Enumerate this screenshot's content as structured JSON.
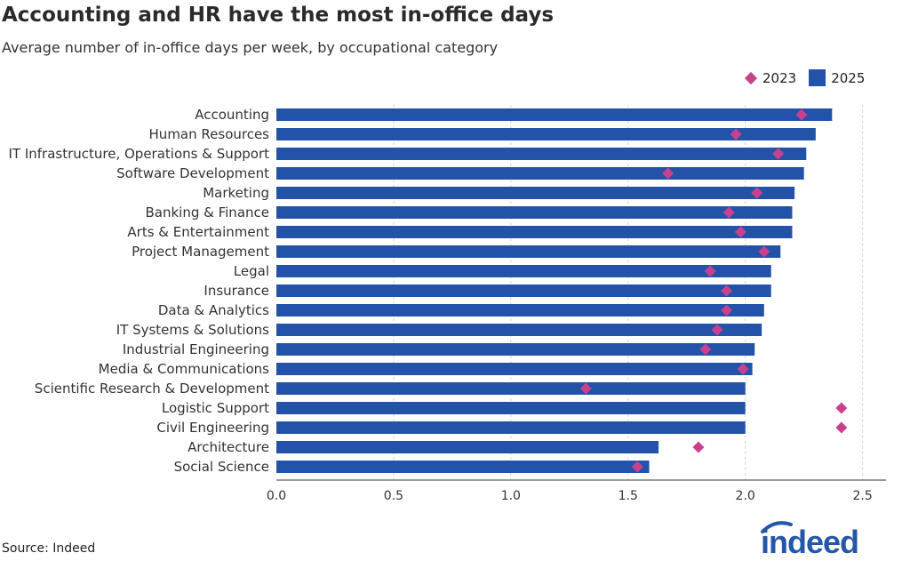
{
  "title": "Accounting and HR have the most in-office days",
  "subtitle": "Average number of in-office days per week, by occupational category",
  "source": "Source: Indeed",
  "logo_text": "indeed",
  "colors": {
    "bar": "#2253a8",
    "marker": "#c8418e",
    "grid": "#d4d4d4",
    "axis": "#333333",
    "logo": "#2557a7"
  },
  "chart_data": {
    "type": "bar",
    "orientation": "horizontal",
    "title": "Accounting and HR have the most in-office days",
    "subtitle": "Average number of in-office days per week, by occupational category",
    "xlim": [
      0,
      2.6
    ],
    "xticks": [
      0.0,
      0.5,
      1.0,
      1.5,
      2.0,
      2.5
    ],
    "xtick_labels": [
      "0.0",
      "0.5",
      "1.0",
      "1.5",
      "2.0",
      "2.5"
    ],
    "grid": "vertical dashed",
    "legend_position": "top-right",
    "categories": [
      "Accounting",
      "Human Resources",
      "IT Infrastructure, Operations & Support",
      "Software Development",
      "Marketing",
      "Banking & Finance",
      "Arts & Entertainment",
      "Project Management",
      "Legal",
      "Insurance",
      "Data & Analytics",
      "IT Systems & Solutions",
      "Industrial Engineering",
      "Media & Communications",
      "Scientific Research & Development",
      "Logistic Support",
      "Civil Engineering",
      "Architecture",
      "Social Science"
    ],
    "series": [
      {
        "name": "2025",
        "mark": "bar",
        "values": [
          2.37,
          2.3,
          2.26,
          2.25,
          2.21,
          2.2,
          2.2,
          2.15,
          2.11,
          2.11,
          2.08,
          2.07,
          2.04,
          2.03,
          2.0,
          2.0,
          2.0,
          1.63,
          1.59
        ]
      },
      {
        "name": "2023",
        "mark": "diamond",
        "values": [
          2.24,
          1.96,
          2.14,
          1.67,
          2.05,
          1.93,
          1.98,
          2.08,
          1.85,
          1.92,
          1.92,
          1.88,
          1.83,
          1.99,
          1.32,
          2.41,
          2.41,
          1.8,
          1.54
        ]
      }
    ]
  }
}
